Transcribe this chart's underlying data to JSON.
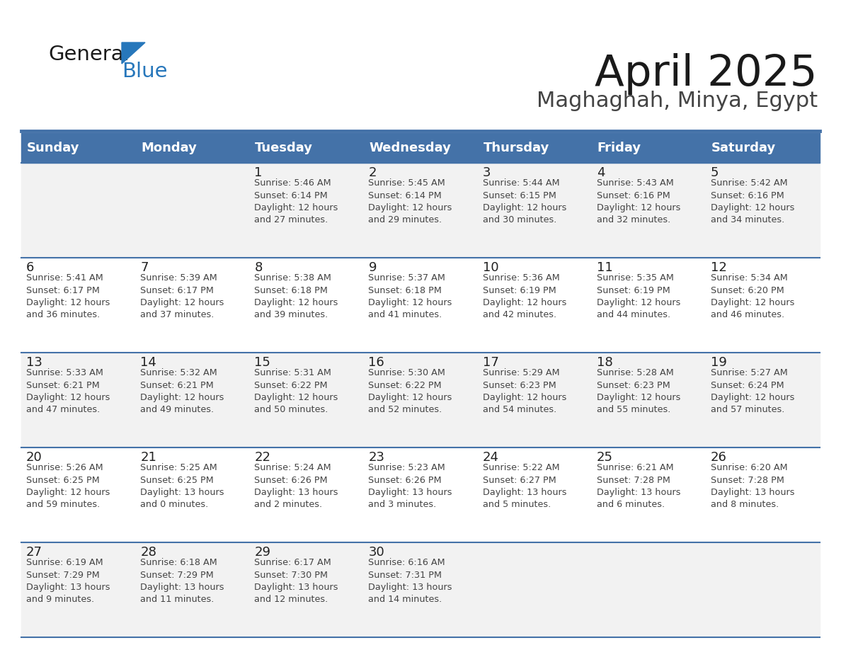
{
  "title": "April 2025",
  "subtitle": "Maghaghah, Minya, Egypt",
  "header_color": "#4472a8",
  "header_text_color": "#ffffff",
  "border_color": "#4472a8",
  "text_color": "#333333",
  "days_of_week": [
    "Sunday",
    "Monday",
    "Tuesday",
    "Wednesday",
    "Thursday",
    "Friday",
    "Saturday"
  ],
  "weeks": [
    [
      {
        "day": "",
        "info": ""
      },
      {
        "day": "",
        "info": ""
      },
      {
        "day": "1",
        "info": "Sunrise: 5:46 AM\nSunset: 6:14 PM\nDaylight: 12 hours\nand 27 minutes."
      },
      {
        "day": "2",
        "info": "Sunrise: 5:45 AM\nSunset: 6:14 PM\nDaylight: 12 hours\nand 29 minutes."
      },
      {
        "day": "3",
        "info": "Sunrise: 5:44 AM\nSunset: 6:15 PM\nDaylight: 12 hours\nand 30 minutes."
      },
      {
        "day": "4",
        "info": "Sunrise: 5:43 AM\nSunset: 6:16 PM\nDaylight: 12 hours\nand 32 minutes."
      },
      {
        "day": "5",
        "info": "Sunrise: 5:42 AM\nSunset: 6:16 PM\nDaylight: 12 hours\nand 34 minutes."
      }
    ],
    [
      {
        "day": "6",
        "info": "Sunrise: 5:41 AM\nSunset: 6:17 PM\nDaylight: 12 hours\nand 36 minutes."
      },
      {
        "day": "7",
        "info": "Sunrise: 5:39 AM\nSunset: 6:17 PM\nDaylight: 12 hours\nand 37 minutes."
      },
      {
        "day": "8",
        "info": "Sunrise: 5:38 AM\nSunset: 6:18 PM\nDaylight: 12 hours\nand 39 minutes."
      },
      {
        "day": "9",
        "info": "Sunrise: 5:37 AM\nSunset: 6:18 PM\nDaylight: 12 hours\nand 41 minutes."
      },
      {
        "day": "10",
        "info": "Sunrise: 5:36 AM\nSunset: 6:19 PM\nDaylight: 12 hours\nand 42 minutes."
      },
      {
        "day": "11",
        "info": "Sunrise: 5:35 AM\nSunset: 6:19 PM\nDaylight: 12 hours\nand 44 minutes."
      },
      {
        "day": "12",
        "info": "Sunrise: 5:34 AM\nSunset: 6:20 PM\nDaylight: 12 hours\nand 46 minutes."
      }
    ],
    [
      {
        "day": "13",
        "info": "Sunrise: 5:33 AM\nSunset: 6:21 PM\nDaylight: 12 hours\nand 47 minutes."
      },
      {
        "day": "14",
        "info": "Sunrise: 5:32 AM\nSunset: 6:21 PM\nDaylight: 12 hours\nand 49 minutes."
      },
      {
        "day": "15",
        "info": "Sunrise: 5:31 AM\nSunset: 6:22 PM\nDaylight: 12 hours\nand 50 minutes."
      },
      {
        "day": "16",
        "info": "Sunrise: 5:30 AM\nSunset: 6:22 PM\nDaylight: 12 hours\nand 52 minutes."
      },
      {
        "day": "17",
        "info": "Sunrise: 5:29 AM\nSunset: 6:23 PM\nDaylight: 12 hours\nand 54 minutes."
      },
      {
        "day": "18",
        "info": "Sunrise: 5:28 AM\nSunset: 6:23 PM\nDaylight: 12 hours\nand 55 minutes."
      },
      {
        "day": "19",
        "info": "Sunrise: 5:27 AM\nSunset: 6:24 PM\nDaylight: 12 hours\nand 57 minutes."
      }
    ],
    [
      {
        "day": "20",
        "info": "Sunrise: 5:26 AM\nSunset: 6:25 PM\nDaylight: 12 hours\nand 59 minutes."
      },
      {
        "day": "21",
        "info": "Sunrise: 5:25 AM\nSunset: 6:25 PM\nDaylight: 13 hours\nand 0 minutes."
      },
      {
        "day": "22",
        "info": "Sunrise: 5:24 AM\nSunset: 6:26 PM\nDaylight: 13 hours\nand 2 minutes."
      },
      {
        "day": "23",
        "info": "Sunrise: 5:23 AM\nSunset: 6:26 PM\nDaylight: 13 hours\nand 3 minutes."
      },
      {
        "day": "24",
        "info": "Sunrise: 5:22 AM\nSunset: 6:27 PM\nDaylight: 13 hours\nand 5 minutes."
      },
      {
        "day": "25",
        "info": "Sunrise: 6:21 AM\nSunset: 7:28 PM\nDaylight: 13 hours\nand 6 minutes."
      },
      {
        "day": "26",
        "info": "Sunrise: 6:20 AM\nSunset: 7:28 PM\nDaylight: 13 hours\nand 8 minutes."
      }
    ],
    [
      {
        "day": "27",
        "info": "Sunrise: 6:19 AM\nSunset: 7:29 PM\nDaylight: 13 hours\nand 9 minutes."
      },
      {
        "day": "28",
        "info": "Sunrise: 6:18 AM\nSunset: 7:29 PM\nDaylight: 13 hours\nand 11 minutes."
      },
      {
        "day": "29",
        "info": "Sunrise: 6:17 AM\nSunset: 7:30 PM\nDaylight: 13 hours\nand 12 minutes."
      },
      {
        "day": "30",
        "info": "Sunrise: 6:16 AM\nSunset: 7:31 PM\nDaylight: 13 hours\nand 14 minutes."
      },
      {
        "day": "",
        "info": ""
      },
      {
        "day": "",
        "info": ""
      },
      {
        "day": "",
        "info": ""
      }
    ]
  ],
  "logo_color_general": "#1a1a1a",
  "logo_color_blue": "#2777bb",
  "logo_triangle_color": "#2777bb"
}
